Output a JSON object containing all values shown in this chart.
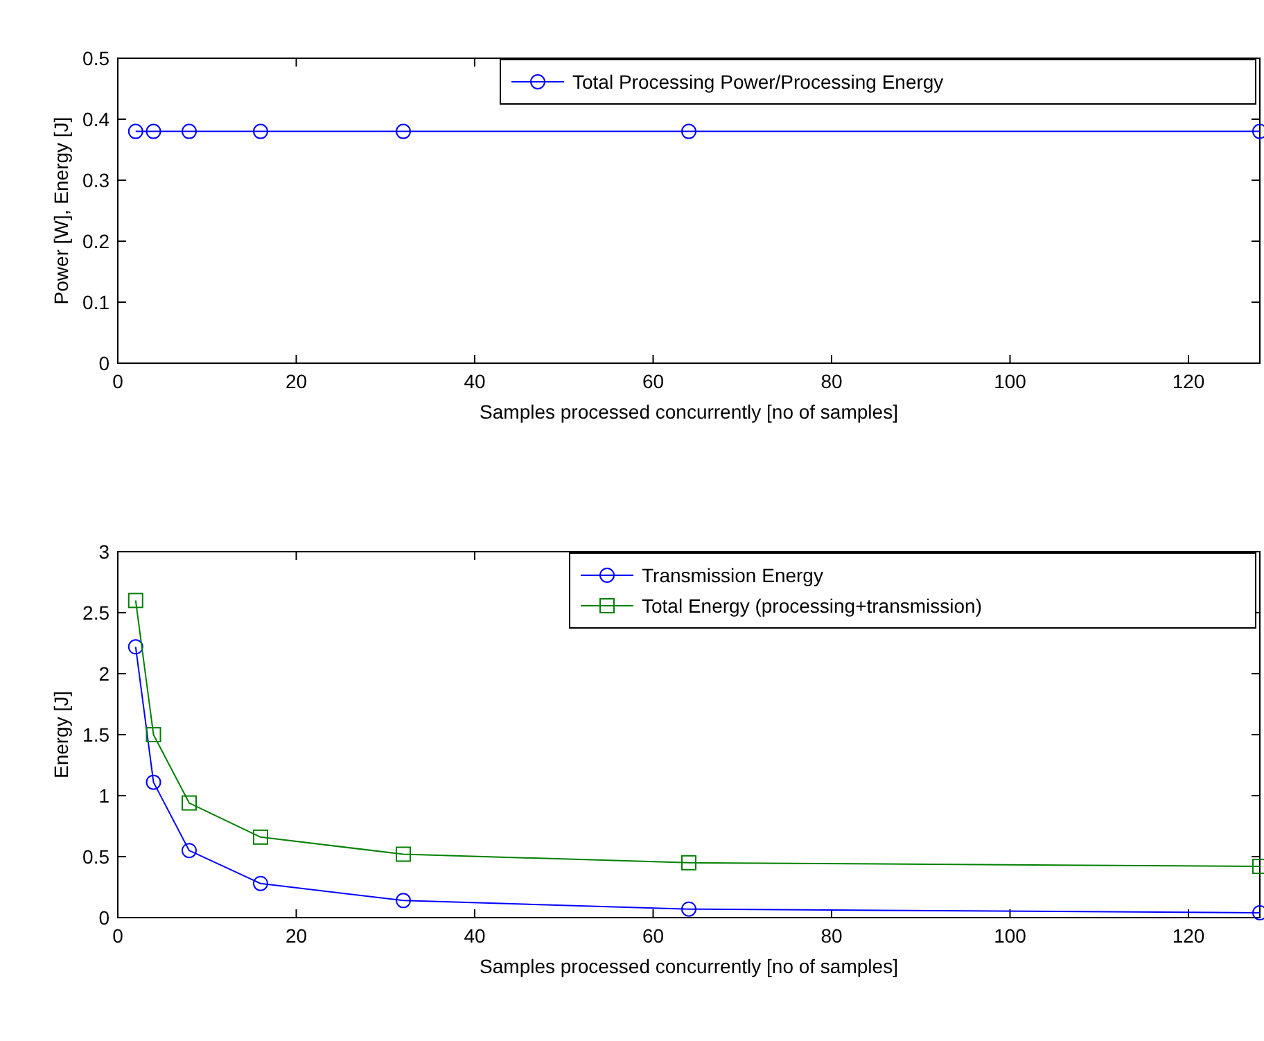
{
  "chart_data": [
    {
      "type": "line",
      "x": [
        2,
        4,
        8,
        16,
        32,
        64,
        128
      ],
      "xlabel": "Samples processed concurrently [no of samples]",
      "ylabel": "Power [W], Energy [J]",
      "xlim": [
        0,
        128
      ],
      "xticks": [
        0,
        20,
        40,
        60,
        80,
        100,
        120
      ],
      "ylim": [
        0,
        0.5
      ],
      "yticks": [
        0,
        0.1,
        0.2,
        0.3,
        0.4,
        0.5
      ],
      "grid": false,
      "legend": "top right",
      "marker": "circle",
      "series": [
        {
          "name": "Total Processing Power/Processing Energy",
          "color": "#0000ff",
          "values": [
            0.38,
            0.38,
            0.38,
            0.38,
            0.38,
            0.38,
            0.38
          ]
        }
      ]
    },
    {
      "type": "line",
      "x": [
        2,
        4,
        8,
        16,
        32,
        64,
        128
      ],
      "xlabel": "Samples processed concurrently [no of samples]",
      "ylabel": "Energy [J]",
      "xlim": [
        0,
        128
      ],
      "xticks": [
        0,
        20,
        40,
        60,
        80,
        100,
        120
      ],
      "ylim": [
        0,
        3
      ],
      "yticks": [
        0,
        0.5,
        1,
        1.5,
        2,
        2.5,
        3
      ],
      "grid": false,
      "legend": "top right",
      "series": [
        {
          "name": "Transmission Energy",
          "color": "#0000ff",
          "marker": "circle",
          "values": [
            2.22,
            1.11,
            0.55,
            0.28,
            0.14,
            0.07,
            0.04
          ]
        },
        {
          "name": "Total Energy (processing+transmission)",
          "color": "#008000",
          "marker": "square",
          "values": [
            2.6,
            1.5,
            0.94,
            0.66,
            0.52,
            0.45,
            0.42
          ]
        }
      ]
    }
  ]
}
